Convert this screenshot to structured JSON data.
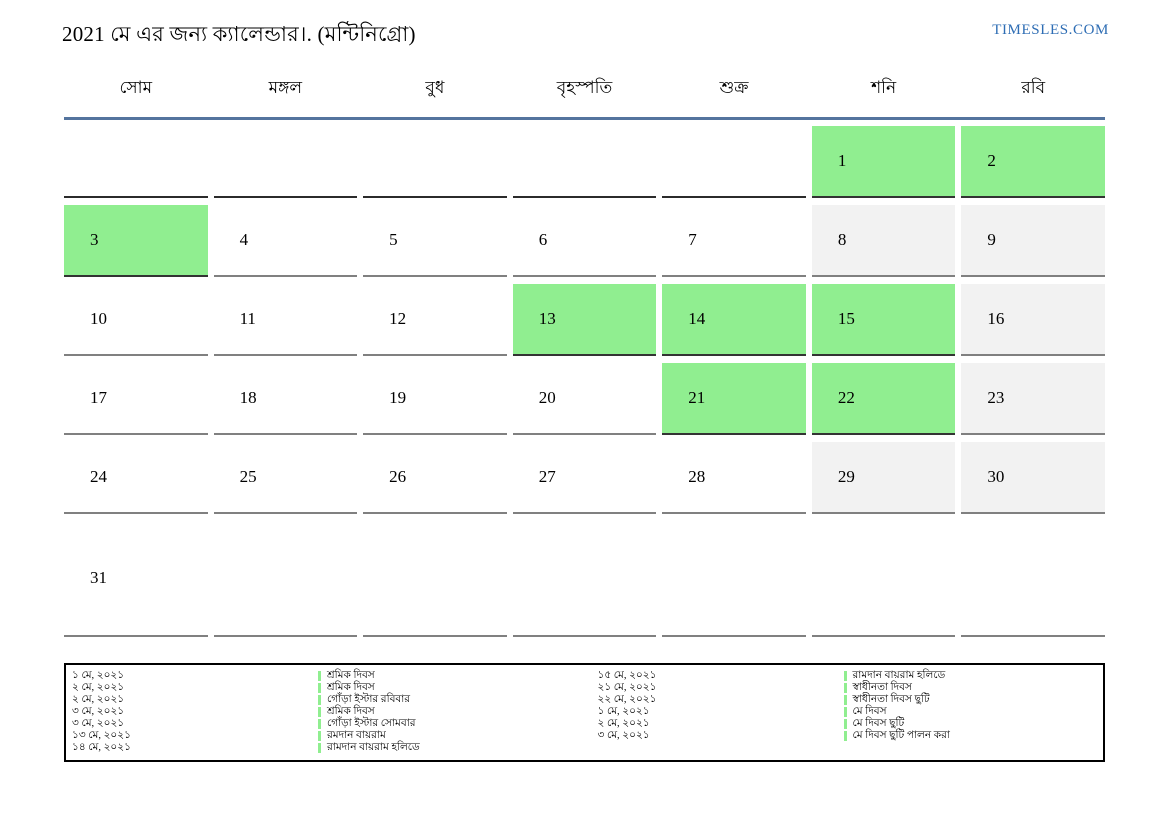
{
  "header": {
    "title": "2021 মে এর জন্য ক্যালেন্ডার।. (মন্টিনিগ্রো)",
    "site": "TIMESLES.COM"
  },
  "colors": {
    "holiday_green": "#90EE90",
    "weekend_gray": "#F2F2F2",
    "header_line_blue": "#54749E",
    "link_blue": "#2E6DB4",
    "cell_border_gray": "#808080",
    "cell_border_dark": "#333333"
  },
  "calendar": {
    "weekdays": [
      "সোম",
      "মঙ্গল",
      "বুধ",
      "বৃহস্পতি",
      "শুক্র",
      "শনি",
      "রবি"
    ],
    "weeks": [
      [
        {
          "day": "",
          "type": "empty-dark"
        },
        {
          "day": "",
          "type": "empty-dark"
        },
        {
          "day": "",
          "type": "empty-dark"
        },
        {
          "day": "",
          "type": "empty-dark"
        },
        {
          "day": "",
          "type": "empty-dark"
        },
        {
          "day": "1",
          "type": "holiday"
        },
        {
          "day": "2",
          "type": "holiday"
        }
      ],
      [
        {
          "day": "3",
          "type": "holiday"
        },
        {
          "day": "4",
          "type": "day"
        },
        {
          "day": "5",
          "type": "day"
        },
        {
          "day": "6",
          "type": "day"
        },
        {
          "day": "7",
          "type": "day"
        },
        {
          "day": "8",
          "type": "weekend"
        },
        {
          "day": "9",
          "type": "weekend"
        }
      ],
      [
        {
          "day": "10",
          "type": "day"
        },
        {
          "day": "11",
          "type": "day"
        },
        {
          "day": "12",
          "type": "day"
        },
        {
          "day": "13",
          "type": "holiday"
        },
        {
          "day": "14",
          "type": "holiday"
        },
        {
          "day": "15",
          "type": "holiday"
        },
        {
          "day": "16",
          "type": "weekend"
        }
      ],
      [
        {
          "day": "17",
          "type": "day"
        },
        {
          "day": "18",
          "type": "day"
        },
        {
          "day": "19",
          "type": "day"
        },
        {
          "day": "20",
          "type": "day"
        },
        {
          "day": "21",
          "type": "holiday"
        },
        {
          "day": "22",
          "type": "holiday"
        },
        {
          "day": "23",
          "type": "weekend"
        }
      ],
      [
        {
          "day": "24",
          "type": "day"
        },
        {
          "day": "25",
          "type": "day"
        },
        {
          "day": "26",
          "type": "day"
        },
        {
          "day": "27",
          "type": "day"
        },
        {
          "day": "28",
          "type": "day"
        },
        {
          "day": "29",
          "type": "weekend"
        },
        {
          "day": "30",
          "type": "weekend"
        }
      ],
      [
        {
          "day": "31",
          "type": "day"
        },
        {
          "day": "",
          "type": "empty"
        },
        {
          "day": "",
          "type": "empty"
        },
        {
          "day": "",
          "type": "empty"
        },
        {
          "day": "",
          "type": "empty"
        },
        {
          "day": "",
          "type": "empty"
        },
        {
          "day": "",
          "type": "empty"
        }
      ]
    ]
  },
  "legend": {
    "columns": [
      {
        "entries": [
          {
            "date": "১ মে, ২০২১",
            "name": "শ্রমিক দিবস"
          },
          {
            "date": "২ মে, ২০২১",
            "name": "শ্রমিক দিবস"
          },
          {
            "date": "২ মে, ২০২১",
            "name": "গোঁড়া ইস্টার রবিবার"
          },
          {
            "date": "৩ মে, ২০২১",
            "name": "শ্রমিক দিবস"
          },
          {
            "date": "৩ মে, ২০২১",
            "name": "গোঁড়া ইস্টার সোমবার"
          },
          {
            "date": "১৩ মে, ২০২১",
            "name": "রমদান বায়রাম"
          },
          {
            "date": "১৪ মে, ২০২১",
            "name": "রামদান বায়রাম হলিডে"
          }
        ]
      },
      {
        "entries": [
          {
            "date": "১৫ মে, ২০২১",
            "name": "রামদান বায়রাম হলিডে"
          },
          {
            "date": "২১ মে, ২০২১",
            "name": "স্বাধীনতা দিবস"
          },
          {
            "date": "২২ মে, ২০২১",
            "name": "স্বাধীনতা দিবস ছুটি"
          },
          {
            "date": "১ মে, ২০২১",
            "name": "মে দিবস"
          },
          {
            "date": "২ মে, ২০২১",
            "name": "মে দিবস ছুটি"
          },
          {
            "date": "৩ মে, ২০২১",
            "name": "মে দিবস ছুটি পালন করা"
          }
        ]
      }
    ]
  }
}
